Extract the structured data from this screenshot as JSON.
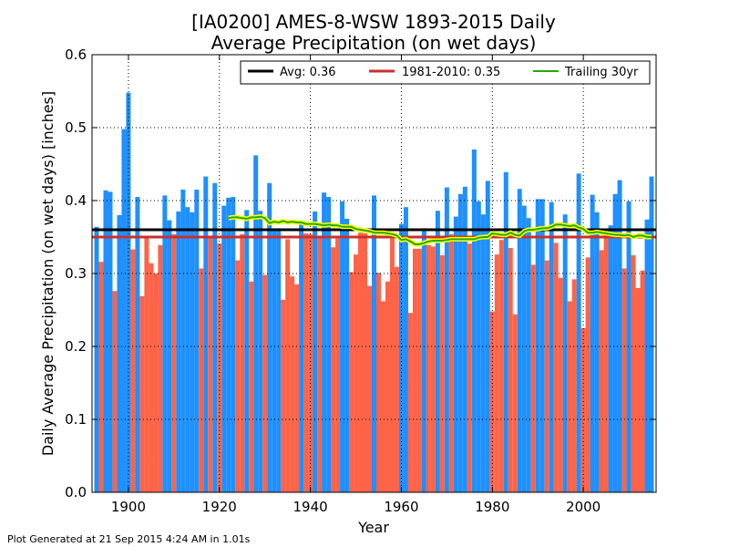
{
  "footer": "Plot Generated at 21 Sep 2015 4:24 AM in 1.01s",
  "chart_data": {
    "type": "bar",
    "title_lines": [
      "[IA0200] AMES-8-WSW 1893-2015 Daily",
      "Average Precipitation (on wet days)"
    ],
    "xlabel": "Year",
    "ylabel": "Daily Average Precipitation (on wet days) [inches]",
    "xlim": [
      1892,
      2016
    ],
    "ylim": [
      0,
      0.6
    ],
    "xticks": [
      1900,
      1920,
      1940,
      1960,
      1980,
      2000
    ],
    "yticks": [
      0.0,
      0.1,
      0.2,
      0.3,
      0.4,
      0.5,
      0.6
    ],
    "xtick_labels": [
      "1900",
      "1920",
      "1940",
      "1960",
      "1980",
      "2000"
    ],
    "ytick_labels": [
      "0.0",
      "0.1",
      "0.2",
      "0.3",
      "0.4",
      "0.5",
      "0.6"
    ],
    "grid": true,
    "legend_position": "top-right",
    "colors": {
      "above": "#1e90ff",
      "below": "#ff6347",
      "avg": "#000000",
      "normal": "#cc2e2e",
      "trailing": "#22aa00",
      "trailing_glow": "#ffff00"
    },
    "avg_value": 0.36,
    "normal_value": 0.35,
    "legend": [
      {
        "label": "Avg: 0.36",
        "color": "#000000"
      },
      {
        "label": "1981-2010: 0.35",
        "color": "#cc2e2e"
      },
      {
        "label": "Trailing 30yr",
        "color": "#22aa00"
      }
    ],
    "years": [
      1893,
      1894,
      1895,
      1896,
      1897,
      1898,
      1899,
      1900,
      1901,
      1902,
      1903,
      1904,
      1905,
      1906,
      1907,
      1908,
      1909,
      1910,
      1911,
      1912,
      1913,
      1914,
      1915,
      1916,
      1917,
      1918,
      1919,
      1920,
      1921,
      1922,
      1923,
      1924,
      1925,
      1926,
      1927,
      1928,
      1929,
      1930,
      1931,
      1932,
      1933,
      1934,
      1935,
      1936,
      1937,
      1938,
      1939,
      1940,
      1941,
      1942,
      1943,
      1944,
      1945,
      1946,
      1947,
      1948,
      1949,
      1950,
      1951,
      1952,
      1953,
      1954,
      1955,
      1956,
      1957,
      1958,
      1959,
      1960,
      1961,
      1962,
      1963,
      1964,
      1965,
      1966,
      1967,
      1968,
      1969,
      1970,
      1971,
      1972,
      1973,
      1974,
      1975,
      1976,
      1977,
      1978,
      1979,
      1980,
      1981,
      1982,
      1983,
      1984,
      1985,
      1986,
      1987,
      1988,
      1989,
      1990,
      1991,
      1992,
      1993,
      1994,
      1995,
      1996,
      1997,
      1998,
      1999,
      2000,
      2001,
      2002,
      2003,
      2004,
      2005,
      2006,
      2007,
      2008,
      2009,
      2010,
      2011,
      2012,
      2013,
      2014,
      2015
    ],
    "values": [
      0.364,
      0.316,
      0.414,
      0.412,
      0.276,
      0.38,
      0.498,
      0.548,
      0.333,
      0.405,
      0.269,
      0.351,
      0.314,
      0.3,
      0.339,
      0.407,
      0.373,
      0.354,
      0.385,
      0.415,
      0.391,
      0.384,
      0.415,
      0.307,
      0.433,
      0.351,
      0.424,
      0.341,
      0.393,
      0.404,
      0.405,
      0.318,
      0.354,
      0.387,
      0.289,
      0.462,
      0.386,
      0.298,
      0.424,
      0.362,
      0.362,
      0.264,
      0.347,
      0.296,
      0.285,
      0.37,
      0.355,
      0.354,
      0.385,
      0.351,
      0.411,
      0.405,
      0.336,
      0.348,
      0.399,
      0.375,
      0.302,
      0.326,
      0.356,
      0.355,
      0.283,
      0.407,
      0.301,
      0.262,
      0.289,
      0.348,
      0.309,
      0.368,
      0.391,
      0.246,
      0.334,
      0.334,
      0.362,
      0.339,
      0.337,
      0.386,
      0.325,
      0.418,
      0.354,
      0.378,
      0.409,
      0.419,
      0.341,
      0.47,
      0.399,
      0.381,
      0.427,
      0.248,
      0.326,
      0.346,
      0.439,
      0.335,
      0.244,
      0.416,
      0.393,
      0.376,
      0.312,
      0.402,
      0.402,
      0.318,
      0.398,
      0.342,
      0.294,
      0.381,
      0.262,
      0.292,
      0.437,
      0.225,
      0.322,
      0.408,
      0.384,
      0.332,
      0.356,
      0.366,
      0.409,
      0.428,
      0.307,
      0.399,
      0.325,
      0.28,
      0.304,
      0.374,
      0.433
    ],
    "trailing_years": [
      1922,
      1923,
      1924,
      1925,
      1926,
      1927,
      1928,
      1929,
      1930,
      1931,
      1932,
      1933,
      1934,
      1935,
      1936,
      1937,
      1938,
      1939,
      1940,
      1941,
      1942,
      1943,
      1944,
      1945,
      1946,
      1947,
      1948,
      1949,
      1950,
      1951,
      1952,
      1953,
      1954,
      1955,
      1956,
      1957,
      1958,
      1959,
      1960,
      1961,
      1962,
      1963,
      1964,
      1965,
      1966,
      1967,
      1968,
      1969,
      1970,
      1971,
      1972,
      1973,
      1974,
      1975,
      1976,
      1977,
      1978,
      1979,
      1980,
      1981,
      1982,
      1983,
      1984,
      1985,
      1986,
      1987,
      1988,
      1989,
      1990,
      1991,
      1992,
      1993,
      1994,
      1995,
      1996,
      1997,
      1998,
      1999,
      2000,
      2001,
      2002,
      2003,
      2004,
      2005,
      2006,
      2007,
      2008,
      2009,
      2010,
      2011,
      2012,
      2013,
      2014,
      2015
    ],
    "trailing_values": [
      0.376,
      0.377,
      0.377,
      0.376,
      0.375,
      0.377,
      0.377,
      0.378,
      0.376,
      0.369,
      0.371,
      0.37,
      0.372,
      0.37,
      0.371,
      0.37,
      0.37,
      0.368,
      0.368,
      0.368,
      0.367,
      0.366,
      0.367,
      0.366,
      0.366,
      0.364,
      0.364,
      0.364,
      0.361,
      0.36,
      0.359,
      0.358,
      0.356,
      0.356,
      0.356,
      0.355,
      0.354,
      0.352,
      0.346,
      0.347,
      0.344,
      0.34,
      0.34,
      0.342,
      0.344,
      0.345,
      0.345,
      0.345,
      0.346,
      0.347,
      0.347,
      0.347,
      0.347,
      0.347,
      0.347,
      0.349,
      0.35,
      0.35,
      0.355,
      0.354,
      0.353,
      0.353,
      0.356,
      0.353,
      0.352,
      0.358,
      0.36,
      0.36,
      0.361,
      0.362,
      0.362,
      0.364,
      0.367,
      0.367,
      0.366,
      0.365,
      0.366,
      0.363,
      0.361,
      0.356,
      0.356,
      0.357,
      0.356,
      0.355,
      0.354,
      0.353,
      0.353,
      0.352,
      0.353,
      0.35,
      0.352,
      0.352,
      0.35,
      0.35
    ]
  }
}
